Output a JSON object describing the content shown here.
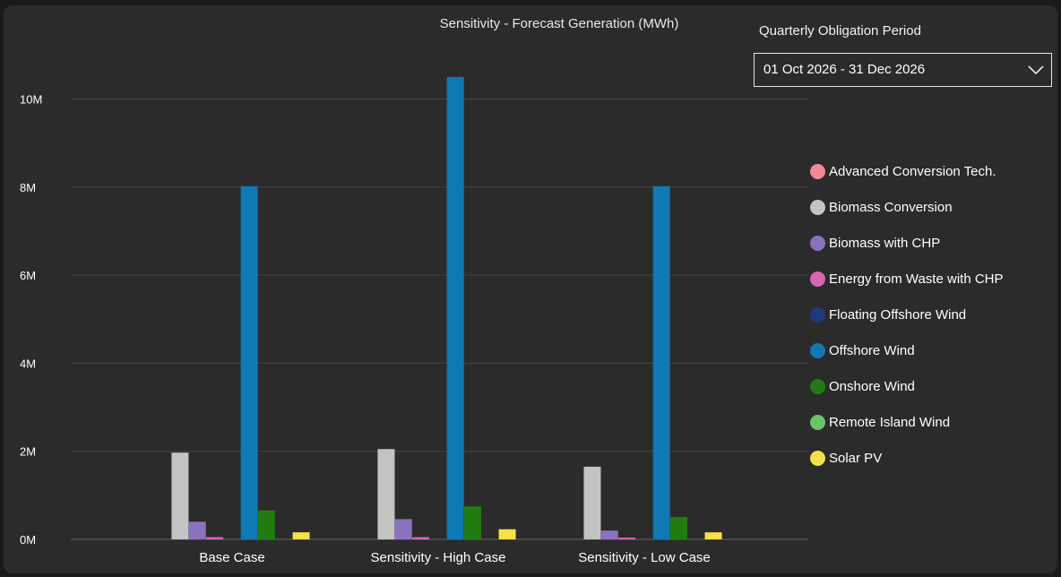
{
  "chart_data": {
    "type": "bar",
    "title": "Sensitivity - Forecast Generation (MWh)",
    "xlabel": "",
    "ylabel": "",
    "categories": [
      "Base Case",
      "Sensitivity - High Case",
      "Sensitivity - Low Case"
    ],
    "y_ticks": [
      "0M",
      "2M",
      "4M",
      "6M",
      "8M",
      "10M"
    ],
    "y_tick_values": [
      0,
      2000000,
      4000000,
      6000000,
      8000000,
      10000000
    ],
    "ylim": [
      0,
      11000000
    ],
    "grid": true,
    "legend_position": "right",
    "series": [
      {
        "name": "Advanced Conversion Tech.",
        "color": "#f08895",
        "values": [
          0,
          0,
          0
        ]
      },
      {
        "name": "Biomass Conversion",
        "color": "#c3c3c3",
        "values": [
          1970000,
          2050000,
          1650000
        ]
      },
      {
        "name": "Biomass with CHP",
        "color": "#8a72c0",
        "values": [
          400000,
          460000,
          200000
        ]
      },
      {
        "name": "Energy from Waste with CHP",
        "color": "#d866b0",
        "values": [
          50000,
          50000,
          40000
        ]
      },
      {
        "name": "Floating Offshore Wind",
        "color": "#1e3a78",
        "values": [
          0,
          0,
          0
        ]
      },
      {
        "name": "Offshore Wind",
        "color": "#0f79b5",
        "values": [
          8020000,
          10500000,
          8020000
        ]
      },
      {
        "name": "Onshore Wind",
        "color": "#237a10",
        "values": [
          660000,
          750000,
          510000
        ]
      },
      {
        "name": "Remote Island Wind",
        "color": "#6ac46c",
        "values": [
          0,
          0,
          0
        ]
      },
      {
        "name": "Solar PV",
        "color": "#f4e04a",
        "values": [
          160000,
          230000,
          160000
        ]
      }
    ]
  },
  "slicer": {
    "label": "Quarterly Obligation Period",
    "value": "01 Oct 2026 - 31 Dec 2026",
    "icon": "chevron-down-icon"
  },
  "colors": {
    "background": "#2b2b2b",
    "gridline": "#444444",
    "axis": "#666666"
  }
}
